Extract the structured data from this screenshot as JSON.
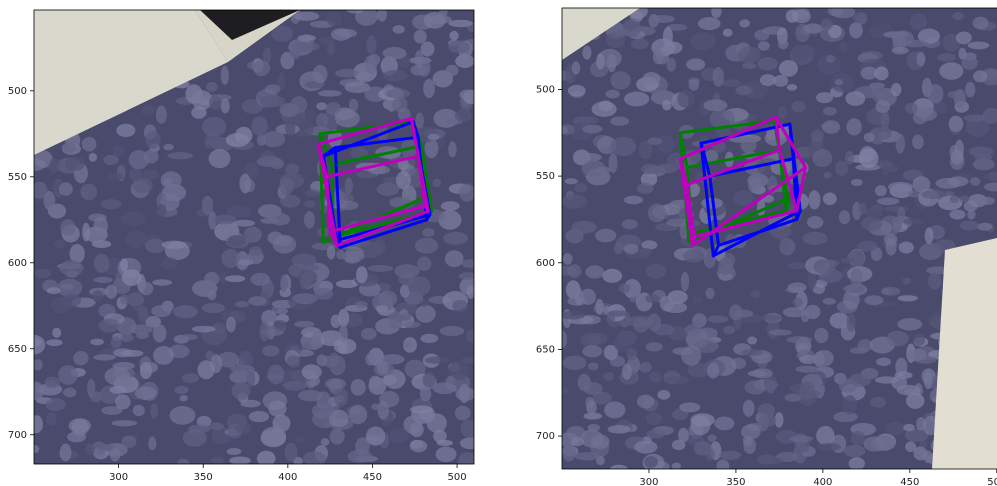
{
  "chart_data": [
    {
      "type": "image",
      "xlim": [
        250,
        510
      ],
      "ylim": [
        717,
        453
      ],
      "xticks": [
        300,
        350,
        400,
        450,
        500
      ],
      "yticks": [
        500,
        550,
        600,
        650,
        700
      ],
      "series": [
        {
          "color": "#008000",
          "x": [
            419,
            474,
            483,
            421,
            426,
            479,
            485,
            427
          ],
          "y": [
            525,
            518,
            561,
            588,
            543,
            532,
            570,
            585
          ]
        },
        {
          "color": "#0000ff",
          "x": [
            421,
            474,
            484,
            429,
            428,
            477,
            482,
            431
          ],
          "y": [
            538,
            518,
            572,
            587,
            533,
            527,
            575,
            591
          ]
        },
        {
          "color": "#bf00bf",
          "x": [
            418,
            473,
            483,
            429,
            423,
            477,
            481,
            425
          ],
          "y": [
            531,
            516,
            570,
            590,
            550,
            538,
            567,
            582
          ]
        }
      ]
    },
    {
      "type": "image",
      "xlim": [
        250,
        503
      ],
      "ylim": [
        719,
        453
      ],
      "xticks": [
        300,
        350,
        400,
        450,
        500
      ],
      "yticks": [
        500,
        550,
        600,
        650,
        700
      ],
      "series": [
        {
          "color": "#008000",
          "x": [
            318,
            372,
            380,
            323,
            322,
            375,
            379,
            325
          ],
          "y": [
            525,
            518,
            563,
            588,
            545,
            535,
            570,
            583
          ]
        },
        {
          "color": "#0000ff",
          "x": [
            330,
            381,
            387,
            337,
            335,
            383,
            385,
            340
          ],
          "y": [
            531,
            520,
            570,
            596,
            550,
            540,
            575,
            590
          ]
        },
        {
          "color": "#bf00bf",
          "x": [
            318,
            373,
            390,
            325,
            322,
            375,
            385,
            326
          ],
          "y": [
            540,
            516,
            545,
            590,
            555,
            535,
            570,
            585
          ]
        }
      ]
    }
  ]
}
